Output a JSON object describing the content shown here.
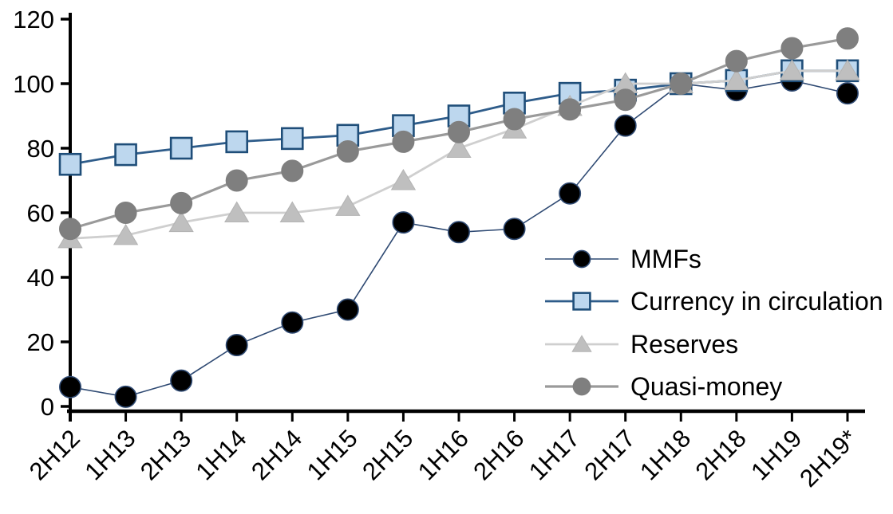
{
  "background": "#FFFFFF",
  "axis": {
    "color": "#000000",
    "y_tick_labels": [
      "0",
      "20",
      "40",
      "60",
      "80",
      "100",
      "120"
    ],
    "x_tick_labels": [
      "2H12",
      "1H13",
      "2H13",
      "1H14",
      "2H14",
      "1H15",
      "2H15",
      "1H16",
      "2H16",
      "1H17",
      "2H17",
      "1H18",
      "2H18",
      "1H19",
      "2H19*"
    ]
  },
  "legend": {
    "items": [
      "MMFs",
      "Currency in circulation",
      "Reserves",
      "Quasi-money"
    ]
  },
  "chart_data": {
    "type": "line",
    "title": "",
    "xlabel": "",
    "ylabel": "",
    "grid": false,
    "legend_position": "inside right",
    "ylim": [
      0,
      120
    ],
    "yticks": [
      0,
      20,
      40,
      60,
      80,
      100,
      120
    ],
    "categories": [
      "2H12",
      "1H13",
      "2H13",
      "1H14",
      "2H14",
      "1H15",
      "2H15",
      "1H16",
      "2H16",
      "1H17",
      "2H17",
      "1H18",
      "2H18",
      "1H19",
      "2H19*"
    ],
    "series": [
      {
        "name": "MMFs",
        "marker": "circle",
        "line_color": "#2F4A73",
        "line_width": 1.6,
        "marker_fill": "#000000",
        "marker_stroke": "#2F4A73",
        "values": [
          6,
          3,
          8,
          19,
          26,
          30,
          57,
          54,
          55,
          66,
          87,
          100,
          98,
          101,
          97
        ]
      },
      {
        "name": "Currency in circulation",
        "marker": "square",
        "line_color": "#2E5C8A",
        "line_width": 2.8,
        "marker_fill": "#BDD7EE",
        "marker_stroke": "#1F4E79",
        "values": [
          75,
          78,
          80,
          82,
          83,
          84,
          87,
          90,
          94,
          97,
          98,
          100,
          101,
          104,
          104
        ]
      },
      {
        "name": "Reserves",
        "marker": "triangle",
        "line_color": "#CFCFCF",
        "line_width": 2.8,
        "marker_fill": "#BFBFBF",
        "marker_stroke": "#B3B3B3",
        "values": [
          52,
          53,
          57,
          60,
          60,
          62,
          70,
          80,
          86,
          93,
          100,
          100,
          101,
          104,
          104
        ]
      },
      {
        "name": "Quasi-money",
        "marker": "circle",
        "line_color": "#9A9A9A",
        "line_width": 3.2,
        "marker_fill": "#7F7F7F",
        "marker_stroke": "#7F7F7F",
        "values": [
          55,
          60,
          63,
          70,
          73,
          79,
          82,
          85,
          89,
          92,
          95,
          100,
          107,
          111,
          114
        ]
      }
    ]
  }
}
